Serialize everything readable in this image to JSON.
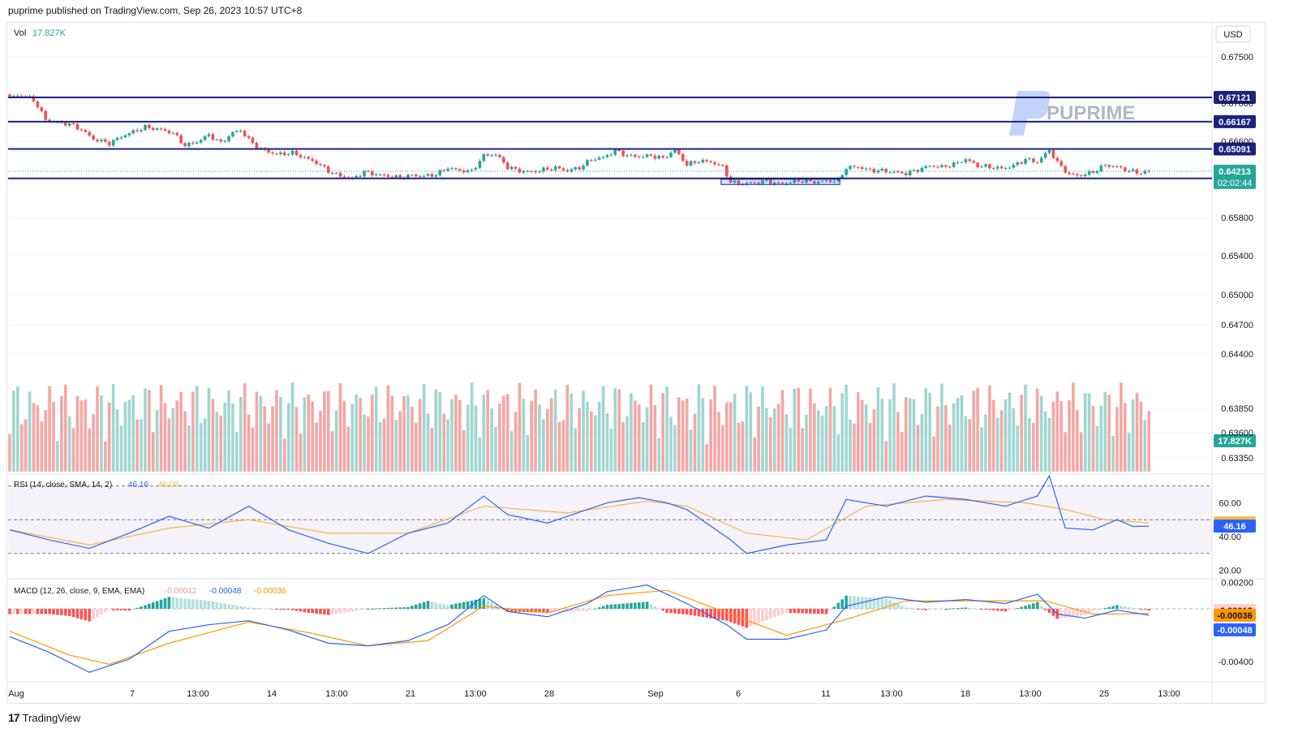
{
  "header": {
    "publisher_text": "puprime published on TradingView.com, Sep 26, 2023 10:57 UTC+8"
  },
  "footer": {
    "brand": "TradingView"
  },
  "watermark": {
    "text": "PUPRIME"
  },
  "colors": {
    "up": "#26a69a",
    "down": "#ef5350",
    "level_line": "#1a237e",
    "rsi": "#2962ff",
    "rsi_sma": "#f5b73f",
    "macd": "#2962ff",
    "signal": "#ff9800"
  },
  "chart_data": [
    {
      "type": "candlestick",
      "title": "",
      "currency": "USD",
      "volume_label": "Vol",
      "volume_value": "17.827K",
      "y_ticks": [
        "0.67500",
        "0.67000",
        "0.66600",
        "0.65800",
        "0.65400",
        "0.65000",
        "0.64700",
        "0.64400",
        "0.63850",
        "0.63600",
        "0.63350"
      ],
      "x_labels": [
        "Aug",
        "7",
        "13:00",
        "14",
        "13:00",
        "21",
        "13:00",
        "28",
        "Sep",
        "6",
        "11",
        "13:00",
        "18",
        "13:00",
        "25",
        "13:00"
      ],
      "levels": [
        0.67121,
        0.66167,
        0.65091,
        0.6393
      ],
      "level_labels": [
        "0.67121",
        "0.66167",
        "0.65091",
        "0.63930"
      ],
      "last_price": "0.64213",
      "countdown": "02:02:44",
      "volume_tag": "17.827K",
      "anchors": [
        {
          "i": 0,
          "p": 0.6713
        },
        {
          "i": 3,
          "p": 0.6722
        },
        {
          "i": 6,
          "p": 0.6703
        },
        {
          "i": 9,
          "p": 0.6625
        },
        {
          "i": 12,
          "p": 0.6612
        },
        {
          "i": 15,
          "p": 0.6608
        },
        {
          "i": 18,
          "p": 0.6585
        },
        {
          "i": 21,
          "p": 0.6548
        },
        {
          "i": 25,
          "p": 0.6531
        },
        {
          "i": 28,
          "p": 0.6558
        },
        {
          "i": 31,
          "p": 0.6577
        },
        {
          "i": 34,
          "p": 0.6595
        },
        {
          "i": 38,
          "p": 0.6585
        },
        {
          "i": 41,
          "p": 0.6572
        },
        {
          "i": 44,
          "p": 0.6522
        },
        {
          "i": 47,
          "p": 0.6537
        },
        {
          "i": 50,
          "p": 0.6565
        },
        {
          "i": 53,
          "p": 0.6532
        },
        {
          "i": 56,
          "p": 0.6573
        },
        {
          "i": 58,
          "p": 0.6583
        },
        {
          "i": 60,
          "p": 0.6545
        },
        {
          "i": 63,
          "p": 0.6508
        },
        {
          "i": 67,
          "p": 0.6488
        },
        {
          "i": 71,
          "p": 0.6493
        },
        {
          "i": 74,
          "p": 0.6475
        },
        {
          "i": 77,
          "p": 0.6455
        },
        {
          "i": 80,
          "p": 0.6422
        },
        {
          "i": 83,
          "p": 0.6402
        },
        {
          "i": 86,
          "p": 0.6392
        },
        {
          "i": 89,
          "p": 0.6418
        },
        {
          "i": 92,
          "p": 0.6408
        },
        {
          "i": 95,
          "p": 0.6402
        },
        {
          "i": 98,
          "p": 0.6395
        },
        {
          "i": 101,
          "p": 0.6405
        },
        {
          "i": 104,
          "p": 0.6402
        },
        {
          "i": 107,
          "p": 0.6408
        },
        {
          "i": 110,
          "p": 0.6435
        },
        {
          "i": 113,
          "p": 0.6423
        },
        {
          "i": 116,
          "p": 0.6422
        },
        {
          "i": 119,
          "p": 0.6483
        },
        {
          "i": 122,
          "p": 0.6488
        },
        {
          "i": 125,
          "p": 0.6438
        },
        {
          "i": 128,
          "p": 0.6422
        },
        {
          "i": 131,
          "p": 0.6418
        },
        {
          "i": 134,
          "p": 0.6427
        },
        {
          "i": 137,
          "p": 0.6435
        },
        {
          "i": 140,
          "p": 0.6423
        },
        {
          "i": 143,
          "p": 0.6435
        },
        {
          "i": 146,
          "p": 0.6468
        },
        {
          "i": 149,
          "p": 0.6475
        },
        {
          "i": 152,
          "p": 0.6502
        },
        {
          "i": 155,
          "p": 0.6483
        },
        {
          "i": 158,
          "p": 0.6478
        },
        {
          "i": 161,
          "p": 0.6483
        },
        {
          "i": 164,
          "p": 0.6472
        },
        {
          "i": 167,
          "p": 0.6505
        },
        {
          "i": 170,
          "p": 0.6447
        },
        {
          "i": 173,
          "p": 0.6462
        },
        {
          "i": 176,
          "p": 0.6458
        },
        {
          "i": 179,
          "p": 0.6438
        },
        {
          "i": 181,
          "p": 0.6378
        },
        {
          "i": 184,
          "p": 0.6372
        },
        {
          "i": 187,
          "p": 0.6376
        },
        {
          "i": 190,
          "p": 0.6382
        },
        {
          "i": 193,
          "p": 0.6372
        },
        {
          "i": 196,
          "p": 0.6378
        },
        {
          "i": 199,
          "p": 0.6384
        },
        {
          "i": 202,
          "p": 0.6378
        },
        {
          "i": 205,
          "p": 0.6382
        },
        {
          "i": 208,
          "p": 0.6385
        },
        {
          "i": 210,
          "p": 0.6435
        },
        {
          "i": 213,
          "p": 0.6438
        },
        {
          "i": 216,
          "p": 0.6425
        },
        {
          "i": 219,
          "p": 0.6423
        },
        {
          "i": 222,
          "p": 0.6418
        },
        {
          "i": 225,
          "p": 0.6412
        },
        {
          "i": 228,
          "p": 0.6427
        },
        {
          "i": 231,
          "p": 0.6443
        },
        {
          "i": 234,
          "p": 0.6438
        },
        {
          "i": 237,
          "p": 0.6448
        },
        {
          "i": 240,
          "p": 0.6468
        },
        {
          "i": 243,
          "p": 0.6443
        },
        {
          "i": 246,
          "p": 0.6438
        },
        {
          "i": 249,
          "p": 0.6432
        },
        {
          "i": 252,
          "p": 0.6443
        },
        {
          "i": 255,
          "p": 0.6468
        },
        {
          "i": 258,
          "p": 0.6458
        },
        {
          "i": 261,
          "p": 0.6505
        },
        {
          "i": 263,
          "p": 0.6455
        },
        {
          "i": 266,
          "p": 0.6408
        },
        {
          "i": 269,
          "p": 0.6405
        },
        {
          "i": 272,
          "p": 0.6418
        },
        {
          "i": 275,
          "p": 0.6445
        },
        {
          "i": 278,
          "p": 0.6438
        },
        {
          "i": 281,
          "p": 0.6422
        },
        {
          "i": 284,
          "p": 0.6415
        },
        {
          "i": 286,
          "p": 0.6421
        }
      ]
    },
    {
      "type": "line",
      "title": "RSI (14, close, SMA, 14, 2)",
      "series": [
        {
          "name": "RSI",
          "last": "46.16"
        },
        {
          "name": "SMA",
          "last": "48.08"
        }
      ],
      "y_ticks": [
        "60.00",
        "40.00",
        "20.00"
      ],
      "bands": [
        70,
        50,
        30
      ],
      "rsi_points": [
        [
          0,
          44
        ],
        [
          10,
          38
        ],
        [
          20,
          33
        ],
        [
          30,
          42
        ],
        [
          40,
          52
        ],
        [
          50,
          45
        ],
        [
          60,
          58
        ],
        [
          70,
          44
        ],
        [
          80,
          36
        ],
        [
          90,
          30
        ],
        [
          100,
          42
        ],
        [
          110,
          48
        ],
        [
          119,
          64
        ],
        [
          125,
          53
        ],
        [
          135,
          48
        ],
        [
          145,
          56
        ],
        [
          150,
          60
        ],
        [
          158,
          63
        ],
        [
          165,
          60
        ],
        [
          170,
          56
        ],
        [
          181,
          38
        ],
        [
          185,
          30
        ],
        [
          195,
          35
        ],
        [
          205,
          38
        ],
        [
          210,
          62
        ],
        [
          220,
          58
        ],
        [
          230,
          64
        ],
        [
          240,
          62
        ],
        [
          250,
          58
        ],
        [
          258,
          64
        ],
        [
          261,
          76
        ],
        [
          265,
          45
        ],
        [
          272,
          44
        ],
        [
          278,
          50
        ],
        [
          282,
          46
        ],
        [
          286,
          46.16
        ]
      ],
      "sma_points": [
        [
          0,
          44
        ],
        [
          20,
          35
        ],
        [
          40,
          45
        ],
        [
          60,
          50
        ],
        [
          80,
          42
        ],
        [
          100,
          42
        ],
        [
          119,
          58
        ],
        [
          140,
          54
        ],
        [
          160,
          61
        ],
        [
          170,
          58
        ],
        [
          185,
          42
        ],
        [
          200,
          38
        ],
        [
          215,
          58
        ],
        [
          235,
          62
        ],
        [
          255,
          60
        ],
        [
          265,
          56
        ],
        [
          275,
          50
        ],
        [
          286,
          48.08
        ]
      ]
    },
    {
      "type": "line",
      "title": "MACD (12, 26, close, 9, EMA, EMA)",
      "series": [
        {
          "name": "Histogram",
          "last": "-0.00012"
        },
        {
          "name": "MACD",
          "last": "-0.00048"
        },
        {
          "name": "Signal",
          "last": "-0.00036"
        }
      ],
      "y_ticks": [
        "0.00200",
        "-0.00400"
      ],
      "macd_points": [
        [
          0,
          -0.0021
        ],
        [
          10,
          -0.0033
        ],
        [
          20,
          -0.0048
        ],
        [
          30,
          -0.0038
        ],
        [
          40,
          -0.0017
        ],
        [
          50,
          -0.0012
        ],
        [
          60,
          -0.0009
        ],
        [
          70,
          -0.0016
        ],
        [
          80,
          -0.0026
        ],
        [
          90,
          -0.0028
        ],
        [
          100,
          -0.0024
        ],
        [
          110,
          -0.0012
        ],
        [
          119,
          0.001
        ],
        [
          125,
          -0.0002
        ],
        [
          135,
          -0.0006
        ],
        [
          145,
          0.0004
        ],
        [
          150,
          0.0013
        ],
        [
          160,
          0.0018
        ],
        [
          170,
          0.0004
        ],
        [
          180,
          -0.0012
        ],
        [
          185,
          -0.0023
        ],
        [
          195,
          -0.0023
        ],
        [
          205,
          -0.0016
        ],
        [
          210,
          0.0002
        ],
        [
          220,
          0.0009
        ],
        [
          230,
          0.0005
        ],
        [
          240,
          0.0007
        ],
        [
          250,
          0.0004
        ],
        [
          258,
          0.0011
        ],
        [
          263,
          -0.0004
        ],
        [
          270,
          -0.0007
        ],
        [
          278,
          -0.0001
        ],
        [
          286,
          -0.00048
        ]
      ],
      "signal_points": [
        [
          0,
          -0.0017
        ],
        [
          15,
          -0.0035
        ],
        [
          25,
          -0.0042
        ],
        [
          40,
          -0.0026
        ],
        [
          60,
          -0.001
        ],
        [
          75,
          -0.0018
        ],
        [
          90,
          -0.0028
        ],
        [
          105,
          -0.0024
        ],
        [
          119,
          0.0002
        ],
        [
          135,
          -0.0003
        ],
        [
          150,
          0.001
        ],
        [
          165,
          0.0014
        ],
        [
          180,
          -0.0003
        ],
        [
          195,
          -0.002
        ],
        [
          210,
          -0.0008
        ],
        [
          225,
          0.0006
        ],
        [
          245,
          0.0006
        ],
        [
          260,
          0.0006
        ],
        [
          272,
          -0.0004
        ],
        [
          286,
          -0.00036
        ]
      ]
    }
  ]
}
